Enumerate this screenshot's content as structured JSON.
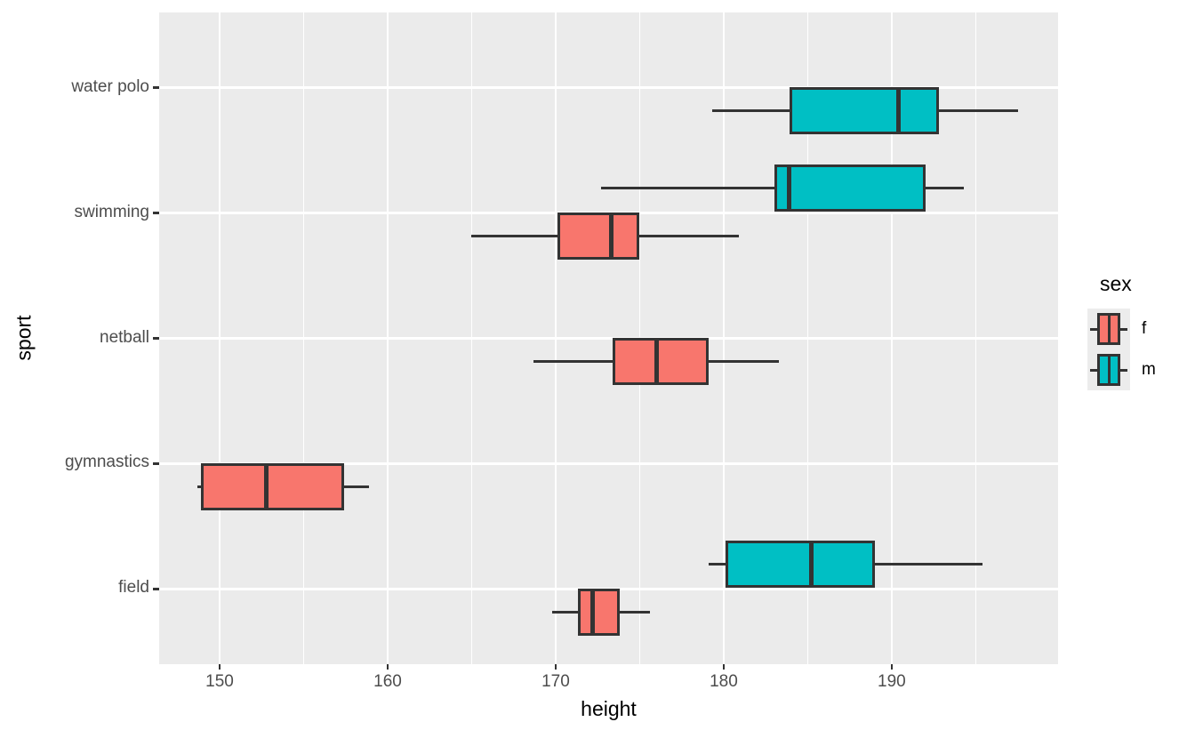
{
  "chart_data": {
    "type": "boxplot",
    "orientation": "horizontal",
    "title": "",
    "xlabel": "height",
    "ylabel": "sport",
    "x_ticks": [
      150,
      160,
      170,
      180,
      190
    ],
    "x_minor_ticks": [
      155,
      165,
      175,
      185,
      195
    ],
    "x_grid_extra": [
      200
    ],
    "x_range": [
      146.4,
      199.9
    ],
    "categories_top_to_bottom": [
      "water polo",
      "swimming",
      "netball",
      "gymnastics",
      "field"
    ],
    "grid": "on",
    "legend": {
      "title": "sex",
      "position": "right",
      "entries": [
        {
          "label": "f",
          "fill": "#F8766D"
        },
        {
          "label": "m",
          "fill": "#00BFC4"
        }
      ]
    },
    "boxes": [
      {
        "sport": "water polo",
        "sex": "m",
        "slot": "lower",
        "whisker_low": 179.3,
        "q1": 183.9,
        "median": 190.4,
        "q3": 192.8,
        "whisker_high": 197.5
      },
      {
        "sport": "swimming",
        "sex": "m",
        "slot": "upper",
        "whisker_low": 172.7,
        "q1": 183.0,
        "median": 183.9,
        "q3": 192.0,
        "whisker_high": 194.3
      },
      {
        "sport": "swimming",
        "sex": "f",
        "slot": "lower",
        "whisker_low": 165.0,
        "q1": 170.1,
        "median": 173.3,
        "q3": 175.0,
        "whisker_high": 180.9
      },
      {
        "sport": "netball",
        "sex": "f",
        "slot": "lower",
        "whisker_low": 168.7,
        "q1": 173.4,
        "median": 176.0,
        "q3": 179.1,
        "whisker_high": 183.3
      },
      {
        "sport": "gymnastics",
        "sex": "f",
        "slot": "lower",
        "whisker_low": 148.7,
        "q1": 148.9,
        "median": 152.8,
        "q3": 157.4,
        "whisker_high": 158.9
      },
      {
        "sport": "field",
        "sex": "m",
        "slot": "upper",
        "whisker_low": 179.1,
        "q1": 180.1,
        "median": 185.2,
        "q3": 189.0,
        "whisker_high": 195.4
      },
      {
        "sport": "field",
        "sex": "f",
        "slot": "lower",
        "whisker_low": 169.8,
        "q1": 171.3,
        "median": 172.2,
        "q3": 173.8,
        "whisker_high": 175.6
      }
    ],
    "colors": {
      "f": "#F8766D",
      "m": "#00BFC4",
      "stroke": "#333333",
      "panel_background": "#EBEBEB",
      "gridline": "#FFFFFF",
      "tick_label": "#4D4D4D",
      "axis_title": "#000000"
    }
  }
}
